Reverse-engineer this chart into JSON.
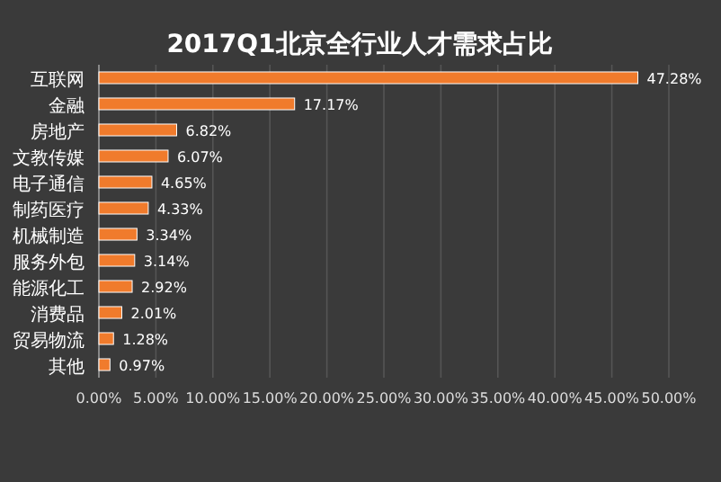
{
  "chart_data": {
    "type": "bar",
    "orientation": "horizontal",
    "title": "2017Q1北京全行业人才需求占比",
    "categories": [
      "互联网",
      "金融",
      "房地产",
      "文教传媒",
      "电子通信",
      "制药医疗",
      "机械制造",
      "服务外包",
      "能源化工",
      "消费品",
      "贸易物流",
      "其他"
    ],
    "values": [
      47.28,
      17.17,
      6.82,
      6.07,
      4.65,
      4.33,
      3.34,
      3.14,
      2.92,
      2.01,
      1.28,
      0.97
    ],
    "value_labels": [
      "47.28%",
      "17.17%",
      "6.82%",
      "6.07%",
      "4.65%",
      "4.33%",
      "3.34%",
      "3.14%",
      "2.92%",
      "2.01%",
      "1.28%",
      "0.97%"
    ],
    "color": "#f07b2c",
    "grid": "x",
    "xlim": [
      0,
      50
    ],
    "xticks": [
      {
        "value": 0,
        "label": "0.00%"
      },
      {
        "value": 5,
        "label": "5.00%"
      },
      {
        "value": 10,
        "label": "10.00%"
      },
      {
        "value": 15,
        "label": "15.00%"
      },
      {
        "value": 20,
        "label": "20.00%"
      },
      {
        "value": 25,
        "label": "25.00%"
      },
      {
        "value": 30,
        "label": "30.00%"
      },
      {
        "value": 35,
        "label": "35.00%"
      },
      {
        "value": 40,
        "label": "40.00%"
      },
      {
        "value": 45,
        "label": "45.00%"
      },
      {
        "value": 50,
        "label": "50.00%"
      }
    ]
  }
}
